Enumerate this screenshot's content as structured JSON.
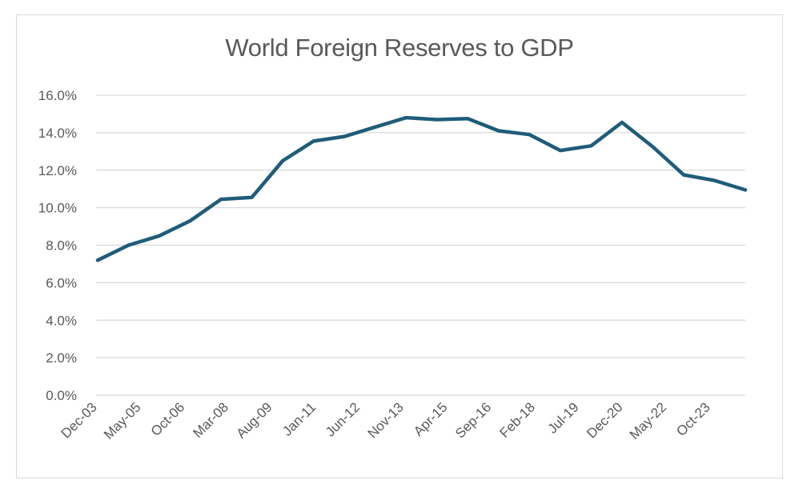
{
  "chart_data": {
    "type": "line",
    "title": "World Foreign Reserves to GDP",
    "xlabel": "",
    "ylabel": "",
    "x_tick_labels": [
      "Dec-03",
      "May-05",
      "Oct-06",
      "Mar-08",
      "Aug-09",
      "Jan-11",
      "Jun-12",
      "Nov-13",
      "Apr-15",
      "Sep-16",
      "Feb-18",
      "Jul-19",
      "Dec-20",
      "May-22",
      "Oct-23"
    ],
    "y_tick_labels": [
      "0.0%",
      "2.0%",
      "4.0%",
      "6.0%",
      "8.0%",
      "10.0%",
      "12.0%",
      "14.0%",
      "16.0%"
    ],
    "ylim": [
      0,
      16
    ],
    "grid": true,
    "legend": "none",
    "series": [
      {
        "color": "#1f5c7a",
        "values": [
          7.2,
          8.0,
          8.5,
          9.3,
          10.45,
          10.55,
          12.5,
          13.55,
          13.8,
          14.3,
          14.8,
          14.7,
          14.75,
          14.1,
          13.9,
          13.05,
          13.3,
          14.55,
          13.25,
          11.75,
          11.45,
          10.95
        ]
      }
    ]
  }
}
